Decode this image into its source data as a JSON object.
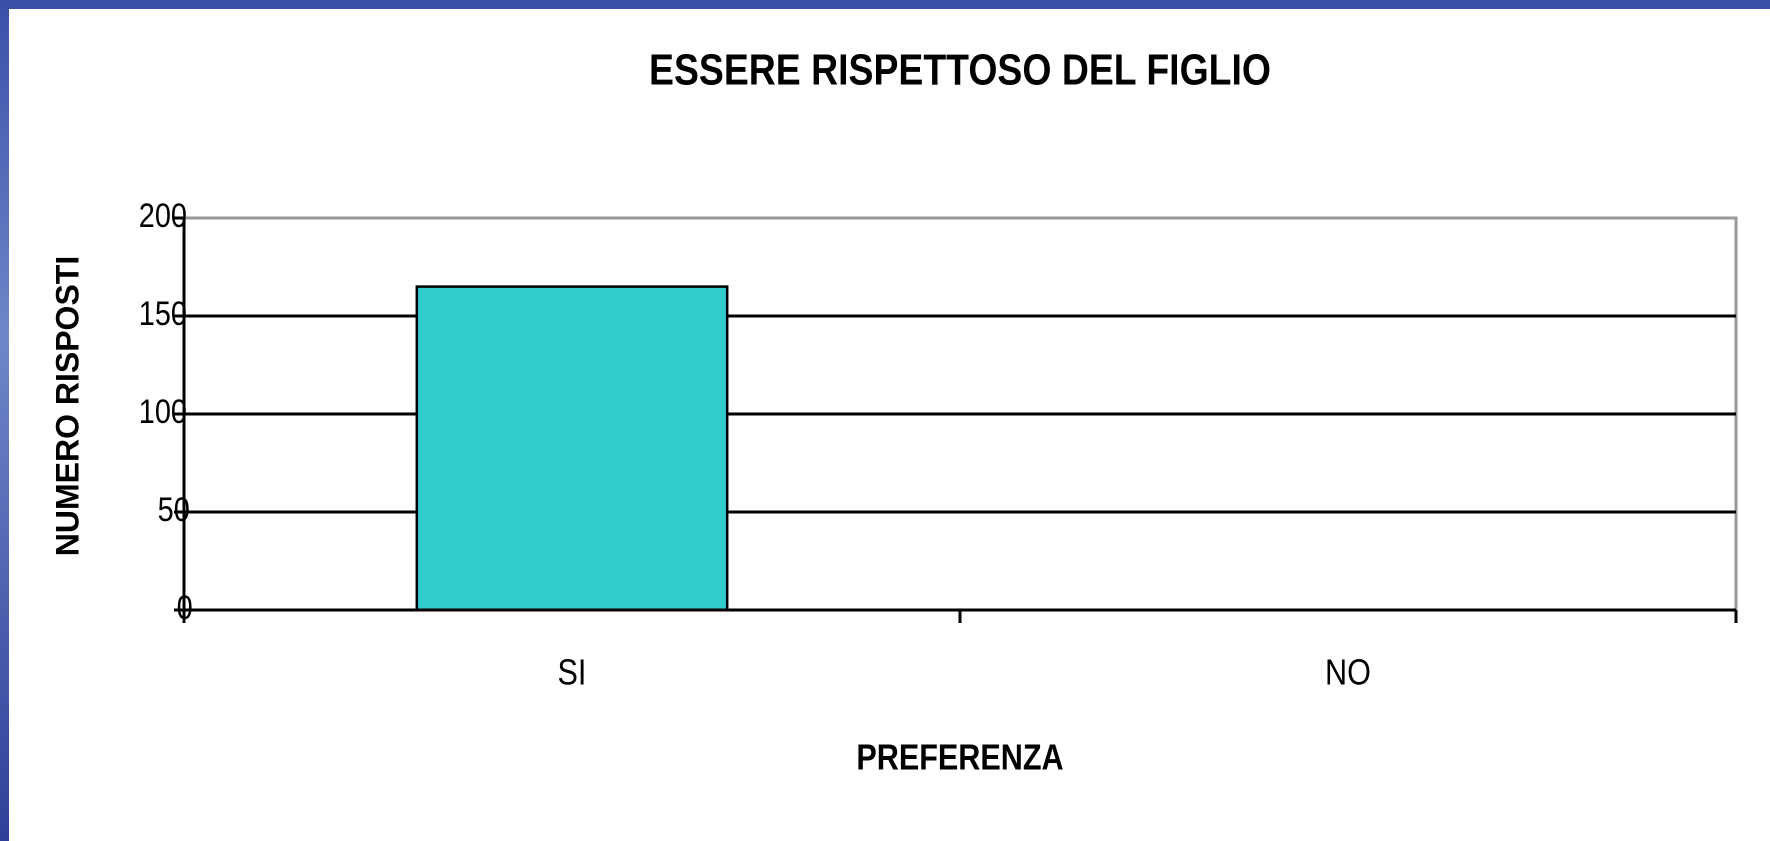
{
  "chart_data": {
    "type": "bar",
    "title": "ESSERE RISPETTOSO DEL FIGLIO",
    "x_label": "PREFERENZA",
    "y_label": "NUMERO RISPOSTI",
    "categories": [
      "SI",
      "NO"
    ],
    "values": [
      165,
      0
    ],
    "color": "#33cccc",
    "ylim": [
      0,
      200
    ],
    "yticks": [
      0,
      50,
      100,
      150,
      200
    ],
    "grid": true
  }
}
